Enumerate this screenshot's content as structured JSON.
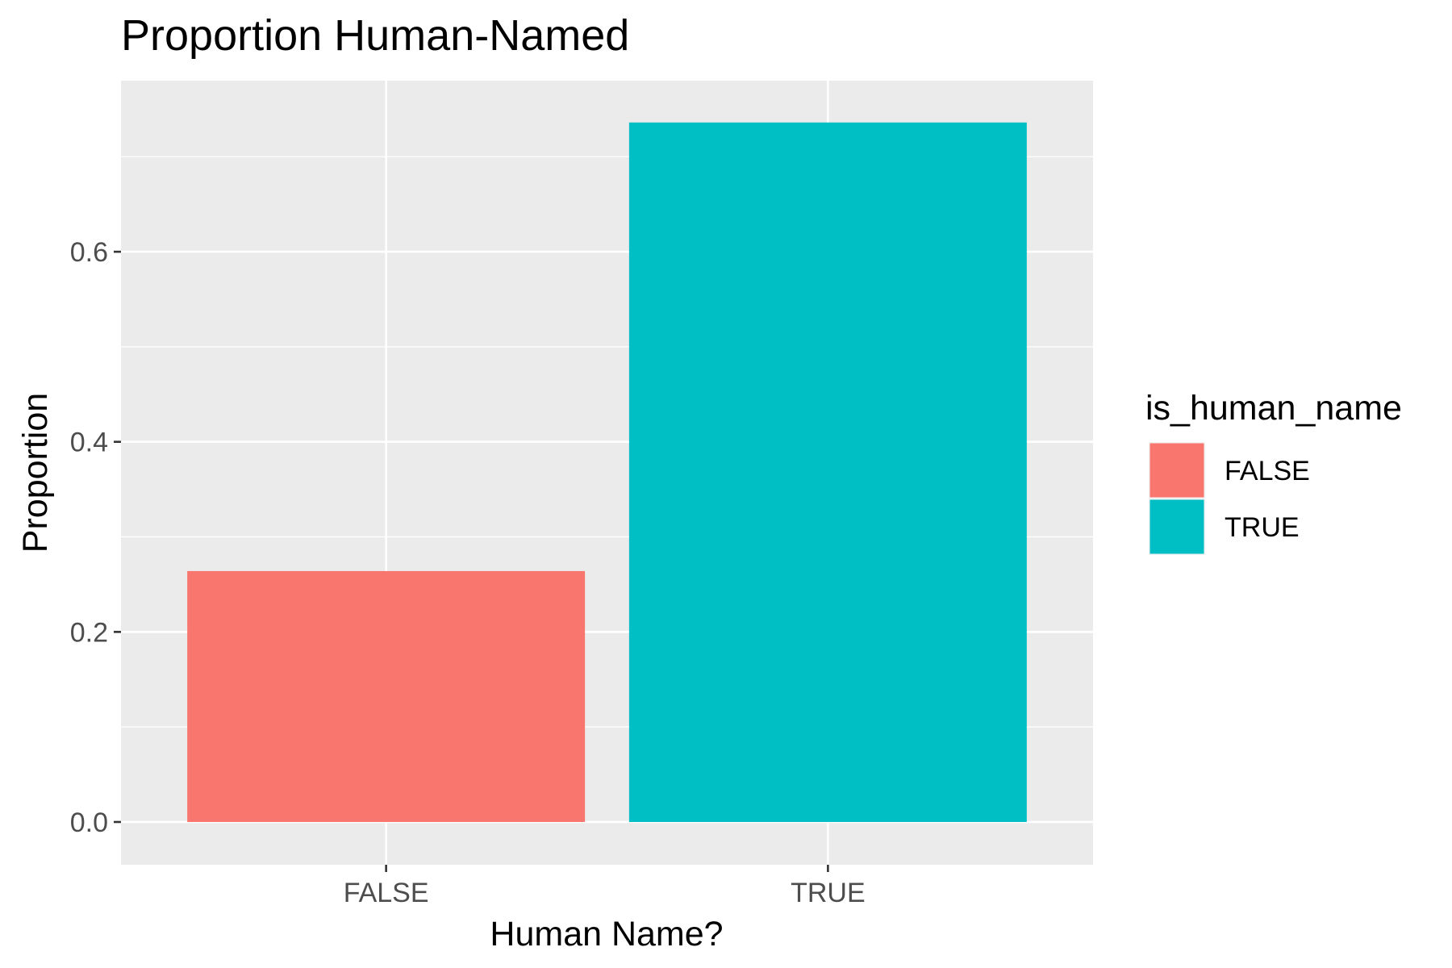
{
  "chart_data": {
    "type": "bar",
    "title": "Proportion Human-Named",
    "xlabel": "Human Name?",
    "ylabel": "Proportion",
    "categories": [
      "FALSE",
      "TRUE"
    ],
    "values": [
      0.264,
      0.736
    ],
    "colors": [
      "#F8766D",
      "#00BFC4"
    ],
    "ylim": [
      -0.045,
      0.78
    ],
    "yticks": [
      0.0,
      0.2,
      0.4,
      0.6
    ],
    "ytick_labels": [
      "0.0",
      "0.2",
      "0.4",
      "0.6"
    ],
    "grid": true,
    "panel_background": "#EBEBEB",
    "legend": {
      "title": "is_human_name",
      "placement": "right",
      "entries": [
        "FALSE",
        "TRUE"
      ]
    }
  }
}
